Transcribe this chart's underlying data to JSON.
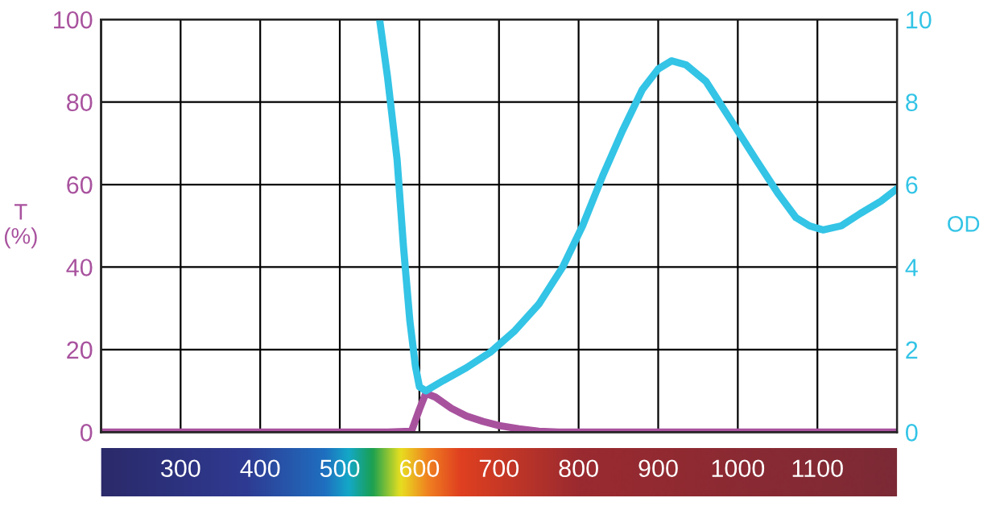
{
  "chart_data": {
    "type": "line",
    "ylabel": "T\n(%)",
    "y2label": "OD",
    "series": [
      {
        "name": null,
        "color": "#a8529e",
        "x": [
          200,
          400,
          560,
          590,
          600,
          608,
          620,
          640,
          659,
          680,
          700,
          725,
          750,
          775,
          800,
          1000,
          1200
        ],
        "values": [
          0,
          0,
          0,
          0.2,
          5.5,
          9.4,
          8.5,
          5.8,
          3.9,
          2.6,
          1.6,
          0.8,
          0.2,
          0,
          0,
          0,
          0
        ]
      },
      {
        "name": null,
        "color": "#33c4e6",
        "axis": "y2",
        "x": [
          550,
          560,
          572,
          580,
          588,
          595,
          600,
          608,
          630,
          659,
          690,
          720,
          750,
          780,
          805,
          830,
          855,
          880,
          900,
          917,
          935,
          960,
          990,
          1023,
          1050,
          1073,
          1090,
          1107,
          1130,
          1154,
          1180,
          1200
        ],
        "values": [
          10,
          8.6,
          6.6,
          4.5,
          2.7,
          1.6,
          1.1,
          1.0,
          1.25,
          1.56,
          1.95,
          2.46,
          3.1,
          4.0,
          5.0,
          6.2,
          7.3,
          8.3,
          8.8,
          9.0,
          8.9,
          8.5,
          7.6,
          6.6,
          5.8,
          5.2,
          5.0,
          4.9,
          5.0,
          5.3,
          5.6,
          5.9
        ]
      }
    ],
    "xlim": [
      200,
      1200
    ],
    "xticks": [
      {
        "value": 200,
        "label": null
      },
      300,
      400,
      500,
      600,
      700,
      800,
      900,
      1000,
      1100,
      {
        "value": 1200,
        "label": null
      }
    ],
    "ylim": [
      0,
      100
    ],
    "yticks": [
      0,
      20,
      40,
      60,
      80,
      100
    ],
    "y2lim": [
      0,
      10
    ],
    "y2ticks": [
      0,
      2,
      4,
      6,
      8,
      10
    ],
    "grid": true,
    "line_style": "solid",
    "marker": "none"
  }
}
